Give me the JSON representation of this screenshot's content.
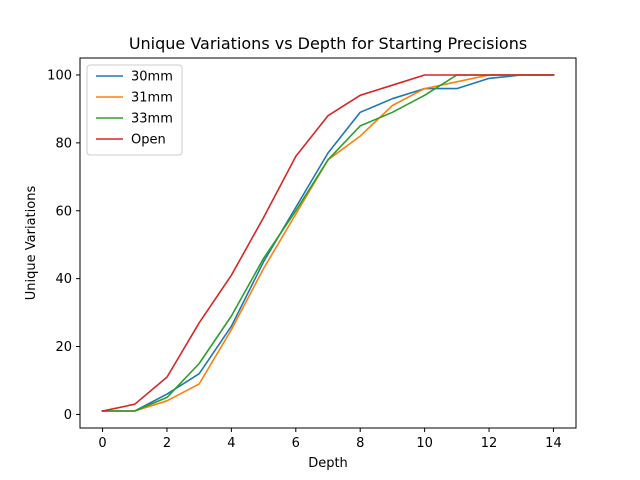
{
  "chart_data": {
    "type": "line",
    "title": "Unique Variations vs Depth for Starting Precisions",
    "xlabel": "Depth",
    "ylabel": "Unique Variations",
    "xlim": [
      -0.7,
      14.7
    ],
    "ylim": [
      -4,
      105
    ],
    "xticks": [
      0,
      2,
      4,
      6,
      8,
      10,
      12,
      14
    ],
    "yticks": [
      0,
      20,
      40,
      60,
      80,
      100
    ],
    "grid": false,
    "legend_position": "top-left",
    "x": [
      0,
      1,
      2,
      3,
      4,
      5,
      6,
      7,
      8,
      9,
      10,
      11,
      12,
      13,
      14
    ],
    "series": [
      {
        "name": "30mm",
        "color": "#1f77b4",
        "values": [
          1,
          1,
          6,
          12,
          26,
          45,
          61,
          77,
          89,
          93,
          96,
          96,
          99,
          100,
          100
        ]
      },
      {
        "name": "31mm",
        "color": "#ff7f0e",
        "values": [
          1,
          1,
          4,
          9,
          25,
          43,
          59,
          75,
          82,
          91,
          96,
          98,
          100,
          100,
          100
        ]
      },
      {
        "name": "33mm",
        "color": "#2ca02c",
        "values": [
          1,
          1,
          5,
          15,
          29,
          46,
          60,
          75,
          85,
          89,
          94,
          100,
          100,
          100,
          100
        ]
      },
      {
        "name": "Open",
        "color": "#d62728",
        "values": [
          1,
          3,
          11,
          27,
          41,
          58,
          76,
          88,
          94,
          97,
          100,
          100,
          100,
          100,
          100
        ]
      }
    ]
  }
}
